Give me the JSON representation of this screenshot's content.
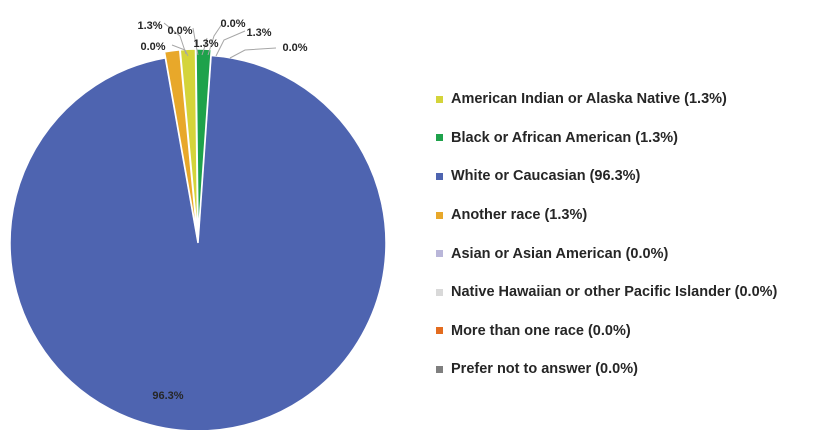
{
  "chart_data": {
    "type": "pie",
    "title": "",
    "legend_position": "right",
    "slices": [
      {
        "name": "White or Caucasian",
        "value": 96.3,
        "label": "96.3%",
        "color": "#4E64B0",
        "legend_label": "White or Caucasian (96.3%)"
      },
      {
        "name": "Another race",
        "value": 1.3,
        "label": "1.3%",
        "color": "#E8A82A",
        "legend_label": "Another race (1.3%)"
      },
      {
        "name": "Asian or Asian American",
        "value": 0.0,
        "label": "0.0%",
        "color": "#B9B6D9",
        "legend_label": "Asian or Asian American (0.0%)"
      },
      {
        "name": "Native Hawaiian or other Pacific Islander",
        "value": 0.0,
        "label": "0.0%",
        "color": "#D9D9D9",
        "legend_label": "Native Hawaiian or other Pacific Islander (0.0%)"
      },
      {
        "name": "American Indian or Alaska Native",
        "value": 1.3,
        "label": "1.3%",
        "color": "#D4D43A",
        "legend_label": "American Indian or Alaska Native (1.3%)"
      },
      {
        "name": "More than one race",
        "value": 0.0,
        "label": "0.0%",
        "color": "#E36C1F",
        "legend_label": "More than one race (0.0%)"
      },
      {
        "name": "Black or African American",
        "value": 1.3,
        "label": "1.3%",
        "color": "#1EA24B",
        "legend_label": "Black or African American (1.3%)"
      },
      {
        "name": "Prefer not to answer",
        "value": 0.0,
        "label": "0.0%",
        "color": "#7F7F7F",
        "legend_label": "Prefer not to answer (0.0%)"
      }
    ],
    "legend_order": [
      "American Indian or Alaska Native",
      "Black or African American",
      "White or Caucasian",
      "Another race",
      "Asian or Asian American",
      "Native Hawaiian or other Pacific Islander",
      "More than one race",
      "Prefer not to answer"
    ]
  }
}
